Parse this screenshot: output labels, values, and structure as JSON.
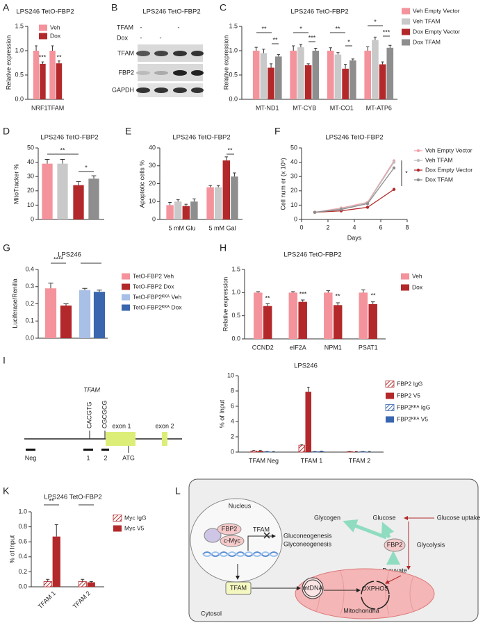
{
  "panel_labels": [
    "A",
    "B",
    "C",
    "D",
    "E",
    "F",
    "G",
    "H",
    "I",
    "K",
    "L"
  ],
  "chart_data": [
    {
      "type": "bar",
      "title": "LPS246 TetO-FBP2",
      "ylabel": "Relative expression",
      "categories": [
        "NRF1",
        "TFAM"
      ],
      "series": [
        {
          "name": "Veh",
          "color": "#f4939b",
          "values": [
            1.0,
            1.0
          ],
          "errors": [
            0.1,
            0.1
          ]
        },
        {
          "name": "Dox",
          "color": "#b3282a",
          "values": [
            0.73,
            0.74
          ],
          "errors": [
            0.04,
            0.05
          ]
        }
      ],
      "ylim": [
        0,
        1.5
      ],
      "yticks": [
        {
          "value": 0,
          "label": "0.0"
        },
        0.5,
        {
          "value": 1,
          "label": "1.0"
        },
        1.5
      ],
      "annotations": [
        "***",
        "**"
      ]
    },
    {
      "type": "bar",
      "title": "LPS246 TetO-FBP2",
      "ylabel": "Relative expression",
      "categories": [
        "MT-ND1",
        "MT-CYB",
        "MT-CO1",
        "MT-ATP6"
      ],
      "series": [
        {
          "name": "Veh   Empty Vector",
          "color": "#f4939b",
          "values": [
            1.0,
            1.0,
            1.0,
            1.0
          ],
          "errors": [
            0.07,
            0.1,
            0.06,
            0.08
          ]
        },
        {
          "name": "Veh   TFAM",
          "color": "#c9c9c9",
          "values": [
            0.95,
            1.07,
            0.92,
            1.22
          ],
          "errors": [
            0.08,
            0.06,
            0.04,
            0.06
          ]
        },
        {
          "name": "Dox   Empty Vector",
          "color": "#b3282a",
          "values": [
            0.65,
            0.7,
            0.63,
            0.72
          ],
          "errors": [
            0.08,
            0.03,
            0.09,
            0.05
          ]
        },
        {
          "name": "Dox   TFAM",
          "color": "#8e8e8e",
          "values": [
            0.88,
            1.0,
            0.8,
            1.06
          ],
          "errors": [
            0.04,
            0.05,
            0.03,
            0.05
          ]
        }
      ],
      "ylim": [
        0,
        1.5
      ],
      "yticks": [
        {
          "value": 0,
          "label": "0.0"
        },
        0.5,
        {
          "value": 1,
          "label": "1.0"
        },
        1.5
      ],
      "annotations": [
        "**",
        "**",
        "*",
        "***",
        "**",
        "*",
        "*",
        "***"
      ]
    },
    {
      "type": "bar",
      "title": "LPS246 TetO-FBP2",
      "ylabel": "MitoTracker  %",
      "categories": [
        null
      ],
      "series": [
        {
          "color": "#f4939b",
          "values": [
            39
          ],
          "errors": [
            3
          ]
        },
        {
          "color": "#c9c9c9",
          "values": [
            39
          ],
          "errors": [
            3
          ]
        },
        {
          "color": "#b3282a",
          "values": [
            24
          ],
          "errors": [
            2.5
          ]
        },
        {
          "color": "#8e8e8e",
          "values": [
            28.5
          ],
          "errors": [
            2
          ]
        }
      ],
      "ylim": [
        0,
        50
      ],
      "yticks": [
        0,
        10,
        20,
        30,
        40,
        50
      ],
      "annotations": [
        "**",
        "*"
      ]
    },
    {
      "type": "bar",
      "title": "LPS246 TetO-FBP2",
      "ylabel": "Apoptotic cells %",
      "categories": [
        "5 mM Glu",
        "5 mM Gal"
      ],
      "series": [
        {
          "color": "#f4939b",
          "values": [
            8,
            18
          ],
          "errors": [
            1.5,
            1
          ]
        },
        {
          "color": "#c9c9c9",
          "values": [
            10,
            18
          ],
          "errors": [
            1,
            1
          ]
        },
        {
          "color": "#b3282a",
          "values": [
            7.5,
            33
          ],
          "errors": [
            1,
            2
          ]
        },
        {
          "color": "#8e8e8e",
          "values": [
            10,
            24
          ],
          "errors": [
            1.5,
            2
          ]
        }
      ],
      "ylim": [
        0,
        40
      ],
      "yticks": [
        0,
        10,
        20,
        30,
        40
      ],
      "annotations": [
        "**"
      ]
    },
    {
      "type": "line",
      "title": "LPS246 TetO-FBP2",
      "xlabel": "Days",
      "ylabel": "Cell num er (x 10⁵)",
      "x": [
        1,
        3,
        5,
        7
      ],
      "series": [
        {
          "name": "Veh   Empty Vector",
          "color": "#f4a0a8",
          "values": [
            5,
            8,
            12,
            41
          ]
        },
        {
          "name": "Veh   TFAM",
          "color": "#bdbdbd",
          "values": [
            5,
            7.5,
            11.5,
            40
          ]
        },
        {
          "name": "Dox   Empty Vector",
          "color": "#b3282a",
          "values": [
            5,
            6,
            8.5,
            21
          ]
        },
        {
          "name": "Dox   TFAM",
          "color": "#8e8e8e",
          "values": [
            5,
            7,
            11,
            36
          ]
        }
      ],
      "xlim": [
        0,
        8
      ],
      "xticks": [
        0,
        2,
        4,
        6,
        8
      ],
      "ylim": [
        0,
        50
      ],
      "yticks": [
        0,
        10,
        20,
        30,
        40,
        50
      ],
      "annotations": [
        "*"
      ]
    },
    {
      "type": "bar",
      "title": "LPS246",
      "ylabel": "Luciferase/Renilla",
      "categories": [
        null
      ],
      "series": [
        {
          "name": "TetO-FBP2   Veh",
          "color": "#f4939b",
          "values": [
            0.29
          ],
          "errors": [
            0.03
          ]
        },
        {
          "name": "TetO-FBP2   Dox",
          "color": "#b3282a",
          "values": [
            0.19
          ],
          "errors": [
            0.01
          ]
        },
        {
          "name": "TetO-FBP2ᴷᴷᴬ   Veh",
          "color": "#a8bfe6",
          "values": [
            0.28
          ],
          "errors": [
            0.01
          ]
        },
        {
          "name": "TetO-FBP2ᴷᴷᴬ   Dox",
          "color": "#3966ae",
          "values": [
            0.27
          ],
          "errors": [
            0.01
          ]
        }
      ],
      "ylim": [
        0,
        0.4
      ],
      "yticks": [
        {
          "value": 0,
          "label": "0.0"
        },
        0.1,
        0.2,
        0.3,
        0.4
      ],
      "annotations": [
        "****"
      ]
    },
    {
      "type": "bar",
      "title": "LPS246 TetO-FBP2",
      "ylabel": "Relative expression",
      "categories": [
        "CCND2",
        "eIF2A",
        "NPM1",
        "PSAT1"
      ],
      "series": [
        {
          "name": "Veh",
          "color": "#f4939b",
          "values": [
            1.0,
            1.0,
            1.0,
            1.0
          ],
          "errors": [
            0.02,
            0.02,
            0.04,
            0.06
          ]
        },
        {
          "name": "Dox",
          "color": "#b3282a",
          "values": [
            0.71,
            0.8,
            0.73,
            0.75
          ],
          "errors": [
            0.05,
            0.04,
            0.05,
            0.05
          ]
        }
      ],
      "ylim": [
        0,
        1.5
      ],
      "yticks": [
        {
          "value": 0,
          "label": "0.0"
        },
        0.5,
        {
          "value": 1,
          "label": "1.0"
        },
        1.5
      ],
      "annotations": [
        "**",
        "***",
        "**",
        "**"
      ]
    },
    {
      "type": "bar",
      "title": "LPS246",
      "ylabel": "% of Input",
      "categories": [
        "TFAM   Neg",
        "TFAM   1",
        "TFAM   2"
      ],
      "series": [
        {
          "name": "FBP2   IgG",
          "color": "#b3282a",
          "pattern": "hatch",
          "values": [
            0.15,
            0.9,
            0.05
          ],
          "errors": [
            0.05,
            0.05,
            0.02
          ]
        },
        {
          "name": "FBP2   V5",
          "color": "#b3282a",
          "values": [
            0.15,
            7.9,
            0.05
          ],
          "errors": [
            0.05,
            0.6,
            0.02
          ]
        },
        {
          "name": "FBP2ᴷᴷᴬ   IgG",
          "color": "#3966ae",
          "pattern": "hatch",
          "values": [
            0.05,
            0.05,
            0.05
          ],
          "errors": [
            0.02,
            0.02,
            0.02
          ]
        },
        {
          "name": "FBP2ᴷᴷᴬ   V5",
          "color": "#3966ae",
          "values": [
            0.05,
            0.1,
            0.05
          ],
          "errors": [
            0.02,
            0.02,
            0.02
          ]
        }
      ],
      "ylim": [
        0,
        10
      ],
      "yticks": [
        0,
        2,
        4,
        6,
        8,
        10
      ]
    },
    {
      "type": "bar",
      "title": "LPS246 TetO-FBP2",
      "ylabel": "% of Input",
      "categories": [
        "TFAM  1",
        "TFAM  2"
      ],
      "series": [
        {
          "name": "Myc   IgG",
          "color": "#b3282a",
          "pattern": "hatch",
          "values": [
            0.07,
            0.07
          ],
          "errors": [
            0.03,
            0.03
          ]
        },
        {
          "name": "Myc   V5",
          "color": "#b3282a",
          "values": [
            0.67,
            0.06
          ],
          "errors": [
            0.16,
            0.01
          ]
        }
      ],
      "ylim": [
        0,
        1.0
      ],
      "yticks": [
        {
          "value": 0,
          "label": "0.0"
        },
        0.2,
        0.4,
        0.6,
        0.8,
        {
          "value": 1,
          "label": "1.0"
        }
      ],
      "annotations": [
        "**"
      ]
    }
  ],
  "blot": {
    "title": "LPS246 TetO-FBP2",
    "rows": [
      {
        "label": "TFAM",
        "marks": [
          "-",
          null,
          "-",
          null
        ]
      },
      {
        "label": "Dox",
        "marks": [
          "-",
          "-",
          null,
          null
        ]
      }
    ],
    "bands": [
      "TFAM",
      "FBP2",
      "GAPDH"
    ]
  },
  "gene_diagram": {
    "title": "TFAM",
    "motifs": [
      "CACGTG",
      "CGCGCG"
    ],
    "exons": [
      "exon 1",
      "exon 2"
    ],
    "start": "ATG",
    "amplicons": [
      "Neg",
      "1",
      "2"
    ]
  },
  "pathway": {
    "nucleus": "Nucleus",
    "fbp2_nuclear": "FBP2",
    "cmyc": "c-Myc",
    "tfam_gene": "TFAM",
    "gluconeogenesis": "Gluconeogenesis",
    "glyconeogenesis": "Glyconeogenesis",
    "glycogen": "Glycogen",
    "glucose": "Glucose",
    "glucose_uptake": "Glucose uptake",
    "fbp2_cytosol": "FBP2",
    "glycolysis": "Glycolysis",
    "pyruvate": "Pyruvate",
    "tfam_protein": "TFAM",
    "mtdna": "mtDNA",
    "oxphos": "OXPHOS",
    "mitochondria": "Mitochondria",
    "cytosol": "Cytosol"
  }
}
